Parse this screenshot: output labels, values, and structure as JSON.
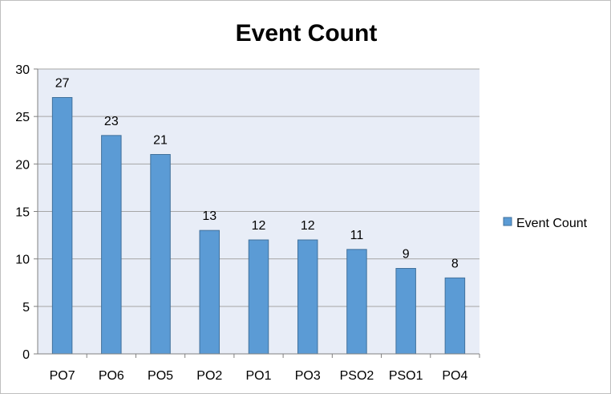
{
  "chart_data": {
    "type": "bar",
    "title": "Event Count",
    "categories": [
      "PO7",
      "PO6",
      "PO5",
      "PO2",
      "PO1",
      "PO3",
      "PSO2",
      "PSO1",
      "PO4"
    ],
    "series": [
      {
        "name": "Event Count",
        "values": [
          27,
          23,
          21,
          13,
          12,
          12,
          11,
          9,
          8
        ]
      }
    ],
    "ylim": [
      0,
      30
    ],
    "yticks": [
      0,
      5,
      10,
      15,
      20,
      25,
      30
    ],
    "grid": true,
    "data_labels": true,
    "legend_position": "right",
    "colors": {
      "bar_fill": "#5b9bd5",
      "bar_stroke": "#41719c",
      "plot_background": "#e8edf7",
      "grid": "#a6a6a6"
    }
  }
}
